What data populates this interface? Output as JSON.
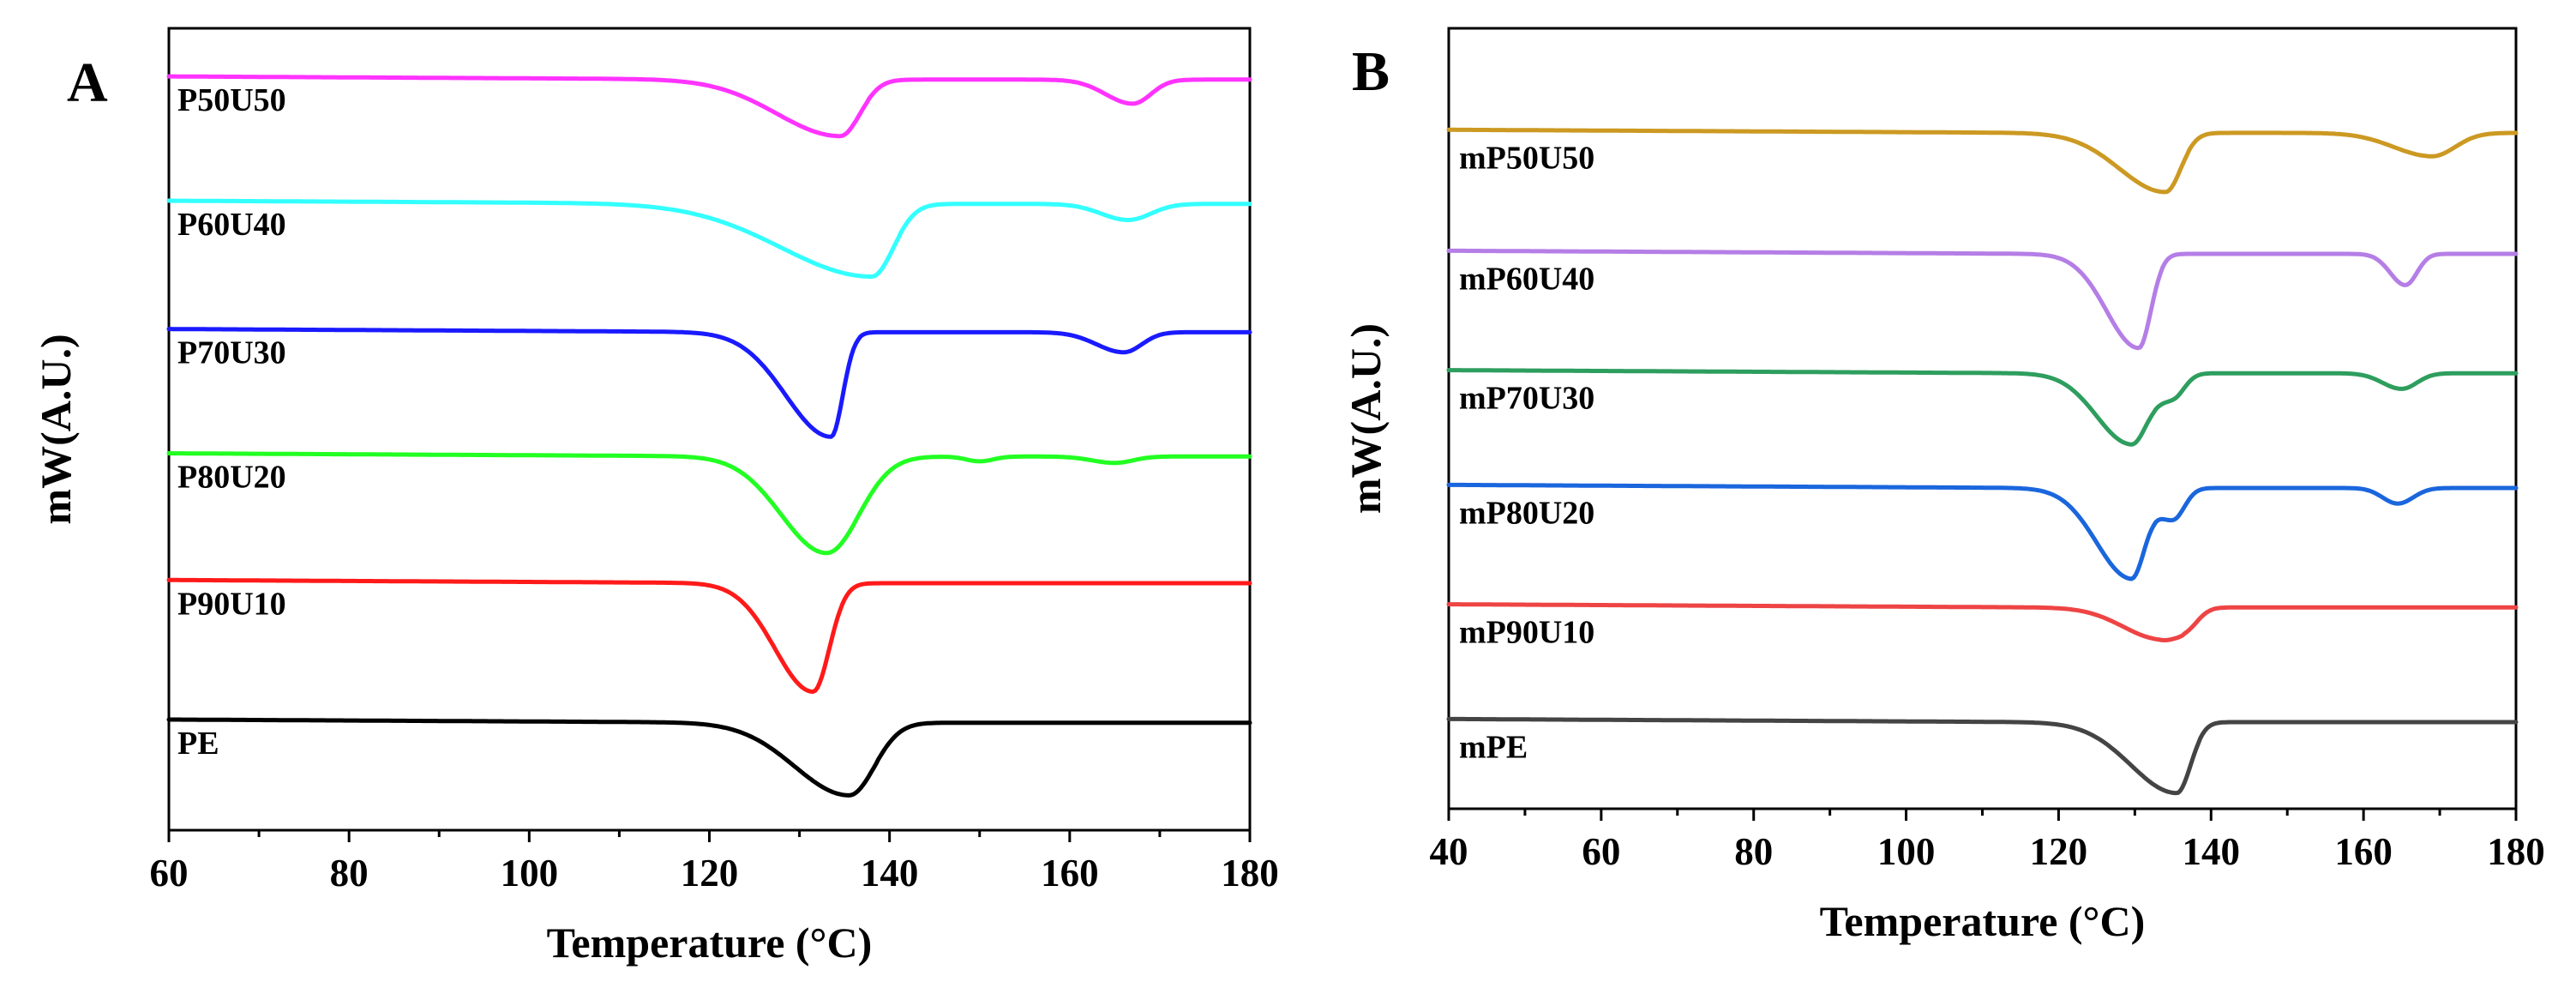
{
  "chart_data": [
    {
      "type": "line",
      "panel": "A",
      "title": "",
      "xlabel": "Temperature (°C)",
      "ylabel": "mW(A.U.)",
      "xlim": [
        60,
        180
      ],
      "ylim": [
        0,
        100
      ],
      "xticks": [
        60,
        80,
        100,
        120,
        140,
        160,
        180
      ],
      "grid": false,
      "legend": "inline labels at left of each curve",
      "series": [
        {
          "name": "P50U50",
          "color": "#ff33ff",
          "baseline": 94.0,
          "features": [
            {
              "center": 134.5,
              "depth": 7.0,
              "left_width": 7.0,
              "right_width": 2.2
            },
            {
              "center": 167.0,
              "depth": 3.0,
              "left_width": 3.0,
              "right_width": 2.0
            }
          ]
        },
        {
          "name": "P60U40",
          "color": "#33ffff",
          "baseline": 78.5,
          "features": [
            {
              "center": 138.0,
              "depth": 9.0,
              "left_width": 10.0,
              "right_width": 2.4
            },
            {
              "center": 166.5,
              "depth": 2.0,
              "left_width": 3.0,
              "right_width": 2.5
            }
          ]
        },
        {
          "name": "P70U30",
          "color": "#1a1aff",
          "baseline": 62.5,
          "features": [
            {
              "center": 133.5,
              "depth": 13.0,
              "left_width": 5.0,
              "right_width": 1.3
            },
            {
              "center": 166.0,
              "depth": 2.5,
              "left_width": 3.0,
              "right_width": 2.0
            }
          ]
        },
        {
          "name": "P80U20",
          "color": "#22ff22",
          "baseline": 47.0,
          "features": [
            {
              "center": 133.0,
              "depth": 12.0,
              "left_width": 5.0,
              "right_width": 3.6
            },
            {
              "center": 150.0,
              "depth": 0.6,
              "left_width": 1.5,
              "right_width": 1.5
            },
            {
              "center": 165.0,
              "depth": 0.8,
              "left_width": 2.5,
              "right_width": 2.0
            }
          ]
        },
        {
          "name": "P90U10",
          "color": "#ff1a1a",
          "baseline": 31.2,
          "features": [
            {
              "center": 131.5,
              "depth": 13.5,
              "left_width": 4.2,
              "right_width": 1.8
            }
          ]
        },
        {
          "name": "PE",
          "color": "#000000",
          "baseline": 13.8,
          "features": [
            {
              "center": 135.5,
              "depth": 9.0,
              "left_width": 6.0,
              "right_width": 2.8
            }
          ]
        }
      ]
    },
    {
      "type": "line",
      "panel": "B",
      "title": "",
      "xlabel": "Temperature (°C)",
      "ylabel": "mW(A.U.)",
      "xlim": [
        40,
        180
      ],
      "ylim": [
        0,
        100
      ],
      "xticks": [
        40,
        60,
        80,
        100,
        120,
        140,
        160,
        180
      ],
      "grid": false,
      "legend": "inline labels at left of each curve",
      "series": [
        {
          "name": "mP50U50",
          "color": "#cc9922",
          "baseline": 87.0,
          "features": [
            {
              "center": 134.0,
              "depth": 7.5,
              "left_width": 6.0,
              "right_width": 2.0
            },
            {
              "center": 169.0,
              "depth": 3.0,
              "left_width": 5.0,
              "right_width": 3.0
            }
          ]
        },
        {
          "name": "mP60U40",
          "color": "#b57ee6",
          "baseline": 71.5,
          "features": [
            {
              "center": 130.5,
              "depth": 12.0,
              "left_width": 4.2,
              "right_width": 1.6
            },
            {
              "center": 165.5,
              "depth": 4.0,
              "left_width": 2.0,
              "right_width": 1.5
            }
          ]
        },
        {
          "name": "mP70U30",
          "color": "#2e9e5e",
          "baseline": 56.2,
          "features": [
            {
              "center": 129.5,
              "depth": 9.0,
              "left_width": 4.5,
              "right_width": 2.2
            },
            {
              "center": 135.0,
              "depth": 3.0,
              "left_width": 2.0,
              "right_width": 1.5
            },
            {
              "center": 165.0,
              "depth": 2.0,
              "left_width": 2.5,
              "right_width": 2.0
            }
          ]
        },
        {
          "name": "mP80U20",
          "color": "#1a66dd",
          "baseline": 41.5,
          "features": [
            {
              "center": 129.5,
              "depth": 11.5,
              "left_width": 4.5,
              "right_width": 1.8
            },
            {
              "center": 135.0,
              "depth": 4.0,
              "left_width": 2.0,
              "right_width": 1.5
            },
            {
              "center": 164.5,
              "depth": 2.0,
              "left_width": 2.0,
              "right_width": 2.0
            }
          ]
        },
        {
          "name": "mP90U10",
          "color": "#ee4444",
          "baseline": 26.2,
          "features": [
            {
              "center": 133.5,
              "depth": 4.0,
              "left_width": 5.0,
              "right_width": 2.5
            },
            {
              "center": 137.0,
              "depth": 1.5,
              "left_width": 1.5,
              "right_width": 1.5
            }
          ]
        },
        {
          "name": "mPE",
          "color": "#444444",
          "baseline": 11.5,
          "features": [
            {
              "center": 135.5,
              "depth": 9.0,
              "left_width": 6.0,
              "right_width": 1.8
            }
          ]
        }
      ]
    }
  ]
}
